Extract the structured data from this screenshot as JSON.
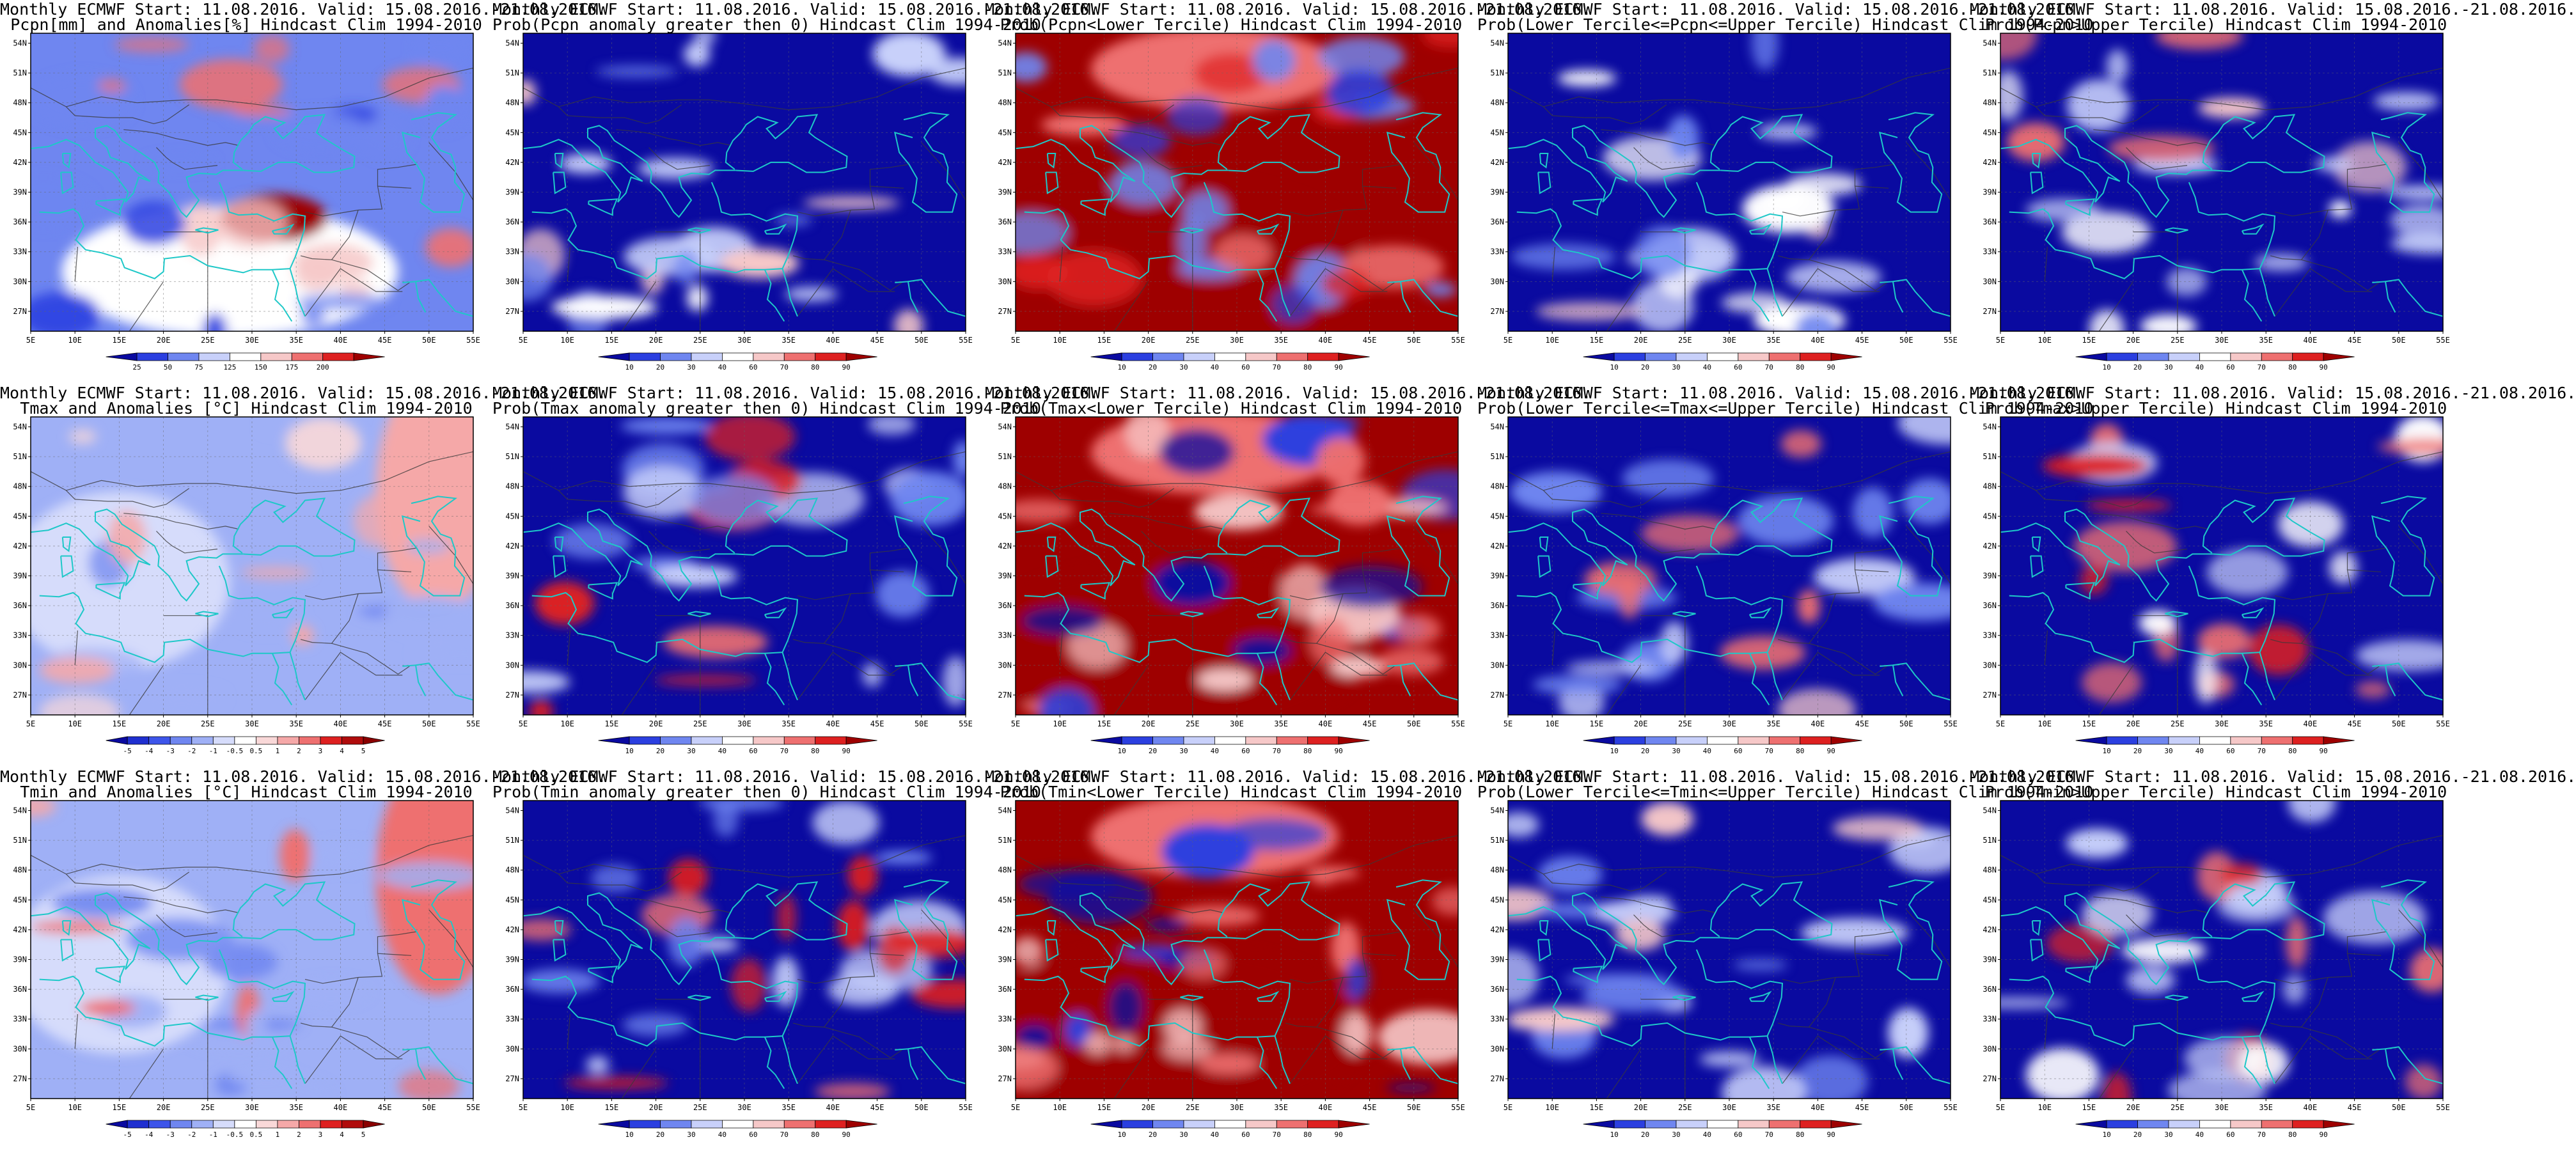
{
  "lon_ticks": [
    "5E",
    "10E",
    "15E",
    "20E",
    "25E",
    "30E",
    "35E",
    "40E",
    "45E",
    "50E",
    "55E"
  ],
  "lat_ticks": [
    "54N",
    "51N",
    "48N",
    "45N",
    "42N",
    "39N",
    "36N",
    "33N",
    "30N",
    "27N"
  ],
  "scales": {
    "pcpn_anom": [
      "25",
      "50",
      "75",
      "125",
      "150",
      "175",
      "200"
    ],
    "prob": [
      "10",
      "20",
      "30",
      "40",
      "60",
      "70",
      "80",
      "90"
    ],
    "temp_anom": [
      "-5",
      "-4",
      "-3",
      "-2",
      "-1",
      "-0.5",
      "0.5",
      "1",
      "2",
      "3",
      "4",
      "5"
    ]
  },
  "colors": {
    "dark_blue": "#0a0aa0",
    "blue": "#2b3fe0",
    "mid_blue": "#6f86f0",
    "light_blue": "#c8d0fa",
    "white": "#ffffff",
    "light_red": "#f6c8c8",
    "mid_red": "#ee7070",
    "red": "#de2020",
    "dark_red": "#9e0000",
    "coast": "#1ec8c8"
  },
  "panels": [
    {
      "line1": "Monthly ECMWF Start: 11.08.2016. Valid: 15.08.2016.-21.08.2016.",
      "line2": "Pcpn[mm] and Anomalies[%] Hindcast Clim 1994-2010",
      "scale": "pcpn_anom"
    },
    {
      "line1": "Monthly ECMWF Start: 11.08.2016. Valid: 15.08.2016.-21.08.2016.",
      "line2": "Prob(Pcpn anomaly greater then 0) Hindcast Clim 1994-2010",
      "scale": "prob"
    },
    {
      "line1": "Monthly ECMWF Start: 11.08.2016. Valid: 15.08.2016.-21.08.2016.",
      "line2": "Prob(Pcpn<Lower Tercile) Hindcast Clim 1994-2010",
      "scale": "prob"
    },
    {
      "line1": "Monthly ECMWF Start: 11.08.2016. Valid: 15.08.2016.-21.08.2016.",
      "line2": "Prob(Lower Tercile<=Pcpn<=Upper Tercile) Hindcast Clim 1994-2010",
      "scale": "prob"
    },
    {
      "line1": "Monthly ECMWF Start: 11.08.2016. Valid: 15.08.2016.-21.08.2016.",
      "line2": "Prob(Pcpn>Upper Tercile) Hindcast Clim 1994-2010",
      "scale": "prob"
    },
    {
      "line1": "Monthly ECMWF Start: 11.08.2016. Valid: 15.08.2016.-21.08.2016.",
      "line2": "Tmax and Anomalies [°C] Hindcast Clim 1994-2010",
      "scale": "temp_anom"
    },
    {
      "line1": "Monthly ECMWF Start: 11.08.2016. Valid: 15.08.2016.-21.08.2016.",
      "line2": "Prob(Tmax anomaly greater then 0) Hindcast Clim 1994-2010",
      "scale": "prob"
    },
    {
      "line1": "Monthly ECMWF Start: 11.08.2016. Valid: 15.08.2016.-21.08.2016.",
      "line2": "Prob(Tmax<Lower Tercile) Hindcast Clim 1994-2010",
      "scale": "prob"
    },
    {
      "line1": "Monthly ECMWF Start: 11.08.2016. Valid: 15.08.2016.-21.08.2016.",
      "line2": "Prob(Lower Tercile<=Tmax<=Upper Tercile) Hindcast Clim 1994-2010",
      "scale": "prob"
    },
    {
      "line1": "Monthly ECMWF Start: 11.08.2016. Valid: 15.08.2016.-21.08.2016.",
      "line2": "Prob(Tmax>Upper Tercile) Hindcast Clim 1994-2010",
      "scale": "prob"
    },
    {
      "line1": "Monthly ECMWF Start: 11.08.2016. Valid: 15.08.2016.-21.08.2016.",
      "line2": "Tmin and Anomalies [°C] Hindcast Clim 1994-2010",
      "scale": "temp_anom"
    },
    {
      "line1": "Monthly ECMWF Start: 11.08.2016. Valid: 15.08.2016.-21.08.2016.",
      "line2": "Prob(Tmin anomaly greater then 0) Hindcast Clim 1994-2010",
      "scale": "prob"
    },
    {
      "line1": "Monthly ECMWF Start: 11.08.2016. Valid: 15.08.2016.-21.08.2016.",
      "line2": "Prob(Tmin<Lower Tercile) Hindcast Clim 1994-2010",
      "scale": "prob"
    },
    {
      "line1": "Monthly ECMWF Start: 11.08.2016. Valid: 15.08.2016.-21.08.2016.",
      "line2": "Prob(Lower Tercile<=Tmin<=Upper Tercile) Hindcast Clim 1994-2010",
      "scale": "prob"
    },
    {
      "line1": "Monthly ECMWF Start: 11.08.2016. Valid: 15.08.2016.-21.08.2016.",
      "line2": "Prob(Tmin>Upper Tercile) Hindcast Clim 1994-2010",
      "scale": "prob"
    }
  ]
}
